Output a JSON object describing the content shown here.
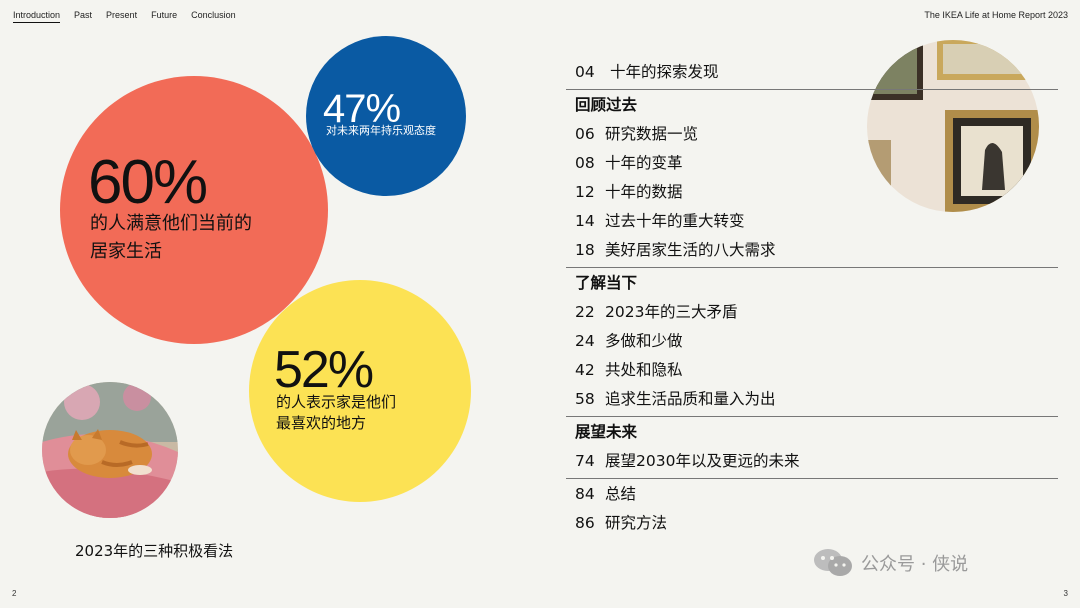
{
  "nav": {
    "tabs": [
      "Introduction",
      "Past",
      "Present",
      "Future",
      "Conclusion"
    ],
    "active_tab": "Introduction"
  },
  "report_title": "The IKEA Life at Home Report 2023",
  "stats": {
    "red": {
      "percent": "60%",
      "line1": "的人满意他们当前的",
      "line2": "居家生活"
    },
    "blue": {
      "percent": "47%",
      "text": "对未来两年持乐观态度"
    },
    "yellow": {
      "percent": "52%",
      "line1": "的人表示家是他们",
      "line2": "最喜欢的地方"
    }
  },
  "caption": "2023年的三种积极看法",
  "toc": {
    "intro": [
      {
        "num": "04",
        "label": "十年的探索发现"
      }
    ],
    "past": {
      "heading": "回顾过去",
      "items": [
        {
          "num": "06",
          "label": "研究数据一览"
        },
        {
          "num": "08",
          "label": "十年的变革"
        },
        {
          "num": "12",
          "label": "十年的数据"
        },
        {
          "num": "14",
          "label": "过去十年的重大转变"
        },
        {
          "num": "18",
          "label": "美好居家生活的八大需求"
        }
      ]
    },
    "present": {
      "heading": "了解当下",
      "items": [
        {
          "num": "22",
          "label": "2023年的三大矛盾"
        },
        {
          "num": "24",
          "label": "多做和少做"
        },
        {
          "num": "42",
          "label": "共处和隐私"
        },
        {
          "num": "58",
          "label": "追求生活品质和量入为出"
        }
      ]
    },
    "future": {
      "heading": "展望未来",
      "items": [
        {
          "num": "74",
          "label": "展望2030年以及更远的未来"
        }
      ]
    },
    "end": [
      {
        "num": "84",
        "label": "总结"
      },
      {
        "num": "86",
        "label": "研究方法"
      }
    ]
  },
  "watermark": "公众号 · 侠说",
  "page_numbers": {
    "left": "2",
    "right": "3"
  },
  "colors": {
    "red": "#f26b57",
    "blue": "#0a5aa3",
    "yellow": "#fce254",
    "background": "#f4f4f0"
  }
}
